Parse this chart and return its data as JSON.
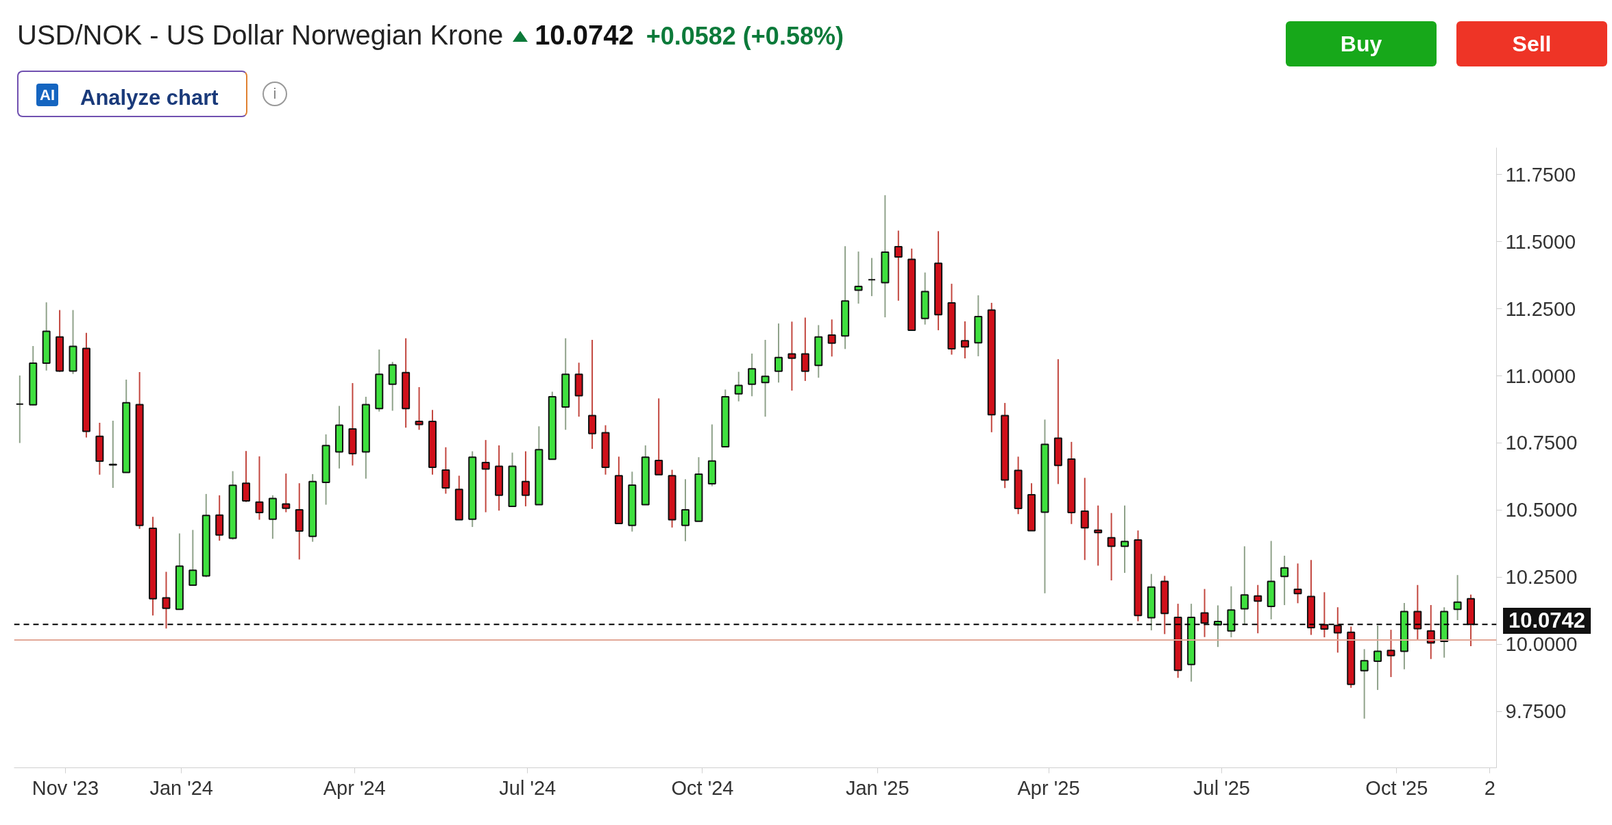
{
  "chart_data": {
    "type": "candlestick",
    "title": "USD/NOK - US Dollar Norwegian Krone",
    "subtitle": "10.0742",
    "annotations": [
      "+0.0582 (+0.58%)",
      "AI",
      "Analyze chart",
      "i",
      "Buy",
      "Sell"
    ],
    "x": [
      "2023-10-08",
      "2023-10-15",
      "2023-10-22",
      "2023-10-29",
      "2023-11-05",
      "2023-11-12",
      "2023-11-19",
      "2023-11-26",
      "2023-12-03",
      "2023-12-10",
      "2023-12-17",
      "2023-12-24",
      "2023-12-31",
      "2024-01-07",
      "2024-01-14",
      "2024-01-21",
      "2024-01-28",
      "2024-02-04",
      "2024-02-11",
      "2024-02-18",
      "2024-02-25",
      "2024-03-03",
      "2024-03-10",
      "2024-03-17",
      "2024-03-24",
      "2024-03-31",
      "2024-04-07",
      "2024-04-14",
      "2024-04-21",
      "2024-04-28",
      "2024-05-05",
      "2024-05-12",
      "2024-05-19",
      "2024-05-26",
      "2024-06-02",
      "2024-06-09",
      "2024-06-16",
      "2024-06-23",
      "2024-06-30",
      "2024-07-07",
      "2024-07-14",
      "2024-07-21",
      "2024-07-28",
      "2024-08-04",
      "2024-08-11",
      "2024-08-18",
      "2024-08-25",
      "2024-09-01",
      "2024-09-08",
      "2024-09-15",
      "2024-09-22",
      "2024-09-29",
      "2024-10-06",
      "2024-10-13",
      "2024-10-20",
      "2024-10-27",
      "2024-11-03",
      "2024-11-10",
      "2024-11-17",
      "2024-11-24",
      "2024-12-01",
      "2024-12-08",
      "2024-12-15",
      "2024-12-22",
      "2024-12-29",
      "2025-01-05",
      "2025-01-12",
      "2025-01-19",
      "2025-01-26",
      "2025-02-02",
      "2025-02-09",
      "2025-02-16",
      "2025-02-23",
      "2025-03-02",
      "2025-03-09",
      "2025-03-16",
      "2025-03-23",
      "2025-03-30",
      "2025-04-06",
      "2025-04-13",
      "2025-04-20",
      "2025-04-27",
      "2025-05-04",
      "2025-05-11",
      "2025-05-18",
      "2025-05-25",
      "2025-06-01",
      "2025-06-08",
      "2025-06-15",
      "2025-06-22",
      "2025-06-29",
      "2025-07-06",
      "2025-07-13",
      "2025-07-20",
      "2025-07-27",
      "2025-08-03",
      "2025-08-10",
      "2025-08-17",
      "2025-08-24",
      "2025-08-31",
      "2025-09-07",
      "2025-09-14",
      "2025-09-21",
      "2025-09-28",
      "2025-10-05",
      "2025-10-12",
      "2025-10-19",
      "2025-10-26",
      "2025-11-02",
      "2025-11-09"
    ],
    "ohlc": [
      [
        10.895,
        11.001,
        10.75,
        10.895
      ],
      [
        10.892,
        11.111,
        10.89,
        11.047
      ],
      [
        11.047,
        11.274,
        11.02,
        11.166
      ],
      [
        11.145,
        11.245,
        11.015,
        11.018
      ],
      [
        11.018,
        11.245,
        11.007,
        11.11
      ],
      [
        11.102,
        11.16,
        10.77,
        10.793
      ],
      [
        10.775,
        10.825,
        10.632,
        10.682
      ],
      [
        10.668,
        10.833,
        10.583,
        10.67
      ],
      [
        10.64,
        10.986,
        10.64,
        10.9
      ],
      [
        10.893,
        11.014,
        10.43,
        10.443
      ],
      [
        10.432,
        10.475,
        10.107,
        10.17
      ],
      [
        10.173,
        10.27,
        10.059,
        10.134
      ],
      [
        10.13,
        10.413,
        10.13,
        10.291
      ],
      [
        10.22,
        10.426,
        10.22,
        10.276
      ],
      [
        10.255,
        10.56,
        10.25,
        10.48
      ],
      [
        10.481,
        10.555,
        10.386,
        10.407
      ],
      [
        10.395,
        10.645,
        10.39,
        10.592
      ],
      [
        10.6,
        10.72,
        10.53,
        10.534
      ],
      [
        10.53,
        10.7,
        10.464,
        10.491
      ],
      [
        10.466,
        10.555,
        10.393,
        10.543
      ],
      [
        10.523,
        10.636,
        10.492,
        10.507
      ],
      [
        10.501,
        10.6,
        10.316,
        10.422
      ],
      [
        10.402,
        10.634,
        10.382,
        10.606
      ],
      [
        10.603,
        10.782,
        10.52,
        10.74
      ],
      [
        10.717,
        10.888,
        10.655,
        10.816
      ],
      [
        10.802,
        10.973,
        10.666,
        10.71
      ],
      [
        10.717,
        10.922,
        10.617,
        10.893
      ],
      [
        10.878,
        11.098,
        10.867,
        11.006
      ],
      [
        10.969,
        11.052,
        10.87,
        11.041
      ],
      [
        11.012,
        11.14,
        10.807,
        10.878
      ],
      [
        10.83,
        10.958,
        10.799,
        10.819
      ],
      [
        10.83,
        10.873,
        10.632,
        10.659
      ],
      [
        10.649,
        10.734,
        10.561,
        10.583
      ],
      [
        10.577,
        10.628,
        10.464,
        10.464
      ],
      [
        10.466,
        10.719,
        10.437,
        10.697
      ],
      [
        10.677,
        10.761,
        10.492,
        10.653
      ],
      [
        10.663,
        10.741,
        10.498,
        10.555
      ],
      [
        10.514,
        10.714,
        10.514,
        10.663
      ],
      [
        10.606,
        10.719,
        10.514,
        10.555
      ],
      [
        10.52,
        10.812,
        10.52,
        10.725
      ],
      [
        10.689,
        10.941,
        10.689,
        10.922
      ],
      [
        10.884,
        11.14,
        10.799,
        11.006
      ],
      [
        11.006,
        11.049,
        10.848,
        10.926
      ],
      [
        10.852,
        11.134,
        10.728,
        10.785
      ],
      [
        10.788,
        10.816,
        10.632,
        10.659
      ],
      [
        10.628,
        10.699,
        10.45,
        10.45
      ],
      [
        10.443,
        10.643,
        10.42,
        10.593
      ],
      [
        10.52,
        10.741,
        10.52,
        10.697
      ],
      [
        10.685,
        10.916,
        10.632,
        10.632
      ],
      [
        10.628,
        10.65,
        10.435,
        10.464
      ],
      [
        10.443,
        10.615,
        10.384,
        10.501
      ],
      [
        10.458,
        10.697,
        10.458,
        10.634
      ],
      [
        10.598,
        10.819,
        10.589,
        10.683
      ],
      [
        10.736,
        10.949,
        10.736,
        10.922
      ],
      [
        10.933,
        11.015,
        10.905,
        10.964
      ],
      [
        10.969,
        11.083,
        10.924,
        11.026
      ],
      [
        10.975,
        11.134,
        10.848,
        10.998
      ],
      [
        11.017,
        11.195,
        10.975,
        11.068
      ],
      [
        11.082,
        11.202,
        10.945,
        11.066
      ],
      [
        11.082,
        11.217,
        10.981,
        11.017
      ],
      [
        11.039,
        11.189,
        10.993,
        11.145
      ],
      [
        11.152,
        11.21,
        11.072,
        11.122
      ],
      [
        11.149,
        11.483,
        11.1,
        11.279
      ],
      [
        11.319,
        11.463,
        11.269,
        11.333
      ],
      [
        11.358,
        11.439,
        11.297,
        11.358
      ],
      [
        11.347,
        11.673,
        11.218,
        11.461
      ],
      [
        11.481,
        11.541,
        11.28,
        11.443
      ],
      [
        11.434,
        11.474,
        11.17,
        11.17
      ],
      [
        11.214,
        11.385,
        11.191,
        11.314
      ],
      [
        11.419,
        11.539,
        11.17,
        11.228
      ],
      [
        11.272,
        11.343,
        11.079,
        11.101
      ],
      [
        11.131,
        11.203,
        11.065,
        11.108
      ],
      [
        11.123,
        11.3,
        11.073,
        11.221
      ],
      [
        11.245,
        11.272,
        10.79,
        10.855
      ],
      [
        10.852,
        10.899,
        10.582,
        10.612
      ],
      [
        10.648,
        10.699,
        10.485,
        10.506
      ],
      [
        10.557,
        10.6,
        10.423,
        10.423
      ],
      [
        10.492,
        10.837,
        10.19,
        10.745
      ],
      [
        10.768,
        11.062,
        10.597,
        10.666
      ],
      [
        10.69,
        10.754,
        10.448,
        10.491
      ],
      [
        10.496,
        10.62,
        10.314,
        10.434
      ],
      [
        10.425,
        10.517,
        10.293,
        10.416
      ],
      [
        10.397,
        10.489,
        10.238,
        10.365
      ],
      [
        10.365,
        10.517,
        10.266,
        10.383
      ],
      [
        10.389,
        10.424,
        10.086,
        10.107
      ],
      [
        10.099,
        10.262,
        10.052,
        10.213
      ],
      [
        10.234,
        10.255,
        10.038,
        10.115
      ],
      [
        10.1,
        10.151,
        9.875,
        9.903
      ],
      [
        9.925,
        10.151,
        9.861,
        10.1
      ],
      [
        10.117,
        10.206,
        10.027,
        10.079
      ],
      [
        10.073,
        10.145,
        9.99,
        10.085
      ],
      [
        10.05,
        10.216,
        10.026,
        10.128
      ],
      [
        10.132,
        10.365,
        10.073,
        10.184
      ],
      [
        10.18,
        10.221,
        10.041,
        10.161
      ],
      [
        10.141,
        10.385,
        10.093,
        10.234
      ],
      [
        10.253,
        10.33,
        10.146,
        10.285
      ],
      [
        10.205,
        10.301,
        10.153,
        10.189
      ],
      [
        10.178,
        10.314,
        10.035,
        10.062
      ],
      [
        10.073,
        10.194,
        10.026,
        10.057
      ],
      [
        10.07,
        10.138,
        9.969,
        10.043
      ],
      [
        10.045,
        10.066,
        9.838,
        9.851
      ],
      [
        9.902,
        9.982,
        9.723,
        9.939
      ],
      [
        9.937,
        10.07,
        9.83,
        9.974
      ],
      [
        9.977,
        10.054,
        9.878,
        9.958
      ],
      [
        9.974,
        10.154,
        9.907,
        10.122
      ],
      [
        10.122,
        10.221,
        10.018,
        10.058
      ],
      [
        10.05,
        10.146,
        9.945,
        10.005
      ],
      [
        10.011,
        10.138,
        9.95,
        10.122
      ],
      [
        10.13,
        10.258,
        10.09,
        10.157
      ],
      [
        10.17,
        10.185,
        9.993,
        10.0742
      ]
    ],
    "xlim": [
      "2023-10-05",
      "2025-11-22T12:00"
    ],
    "xticks": [
      {
        "value": "2023-11-01",
        "label": "Nov '23"
      },
      {
        "value": "2024-01-01",
        "label": "Jan '24"
      },
      {
        "value": "2024-04-01",
        "label": "Apr '24"
      },
      {
        "value": "2024-07-01",
        "label": "Jul '24"
      },
      {
        "value": "2024-10-01",
        "label": "Oct '24"
      },
      {
        "value": "2025-01-01",
        "label": "Jan '25"
      },
      {
        "value": "2025-04-01",
        "label": "Apr '25"
      },
      {
        "value": "2025-07-01",
        "label": "Jul '25"
      },
      {
        "value": "2025-10-01",
        "label": "Oct '25"
      },
      {
        "value": "2025-11-19",
        "label": "2"
      }
    ],
    "ylim": [
      9.54,
      11.85
    ],
    "yticks": [
      {
        "value": 9.75,
        "label": "9.7500"
      },
      {
        "value": 10.0,
        "label": "10.0000"
      },
      {
        "value": 10.25,
        "label": "10.2500"
      },
      {
        "value": 10.5,
        "label": "10.5000"
      },
      {
        "value": 10.75,
        "label": "10.7500"
      },
      {
        "value": 11.0,
        "label": "11.0000"
      },
      {
        "value": 11.25,
        "label": "11.2500"
      },
      {
        "value": 11.5,
        "label": "11.5000"
      },
      {
        "value": 11.75,
        "label": "11.7500"
      }
    ],
    "ref_lines": [
      {
        "axis": "y",
        "value": 10.016,
        "color": "#e2a898",
        "line_style": "solid"
      },
      {
        "axis": "y",
        "value": 10.0742,
        "label": "10.0742",
        "color": "#000000",
        "line_style": "dashed"
      }
    ]
  }
}
